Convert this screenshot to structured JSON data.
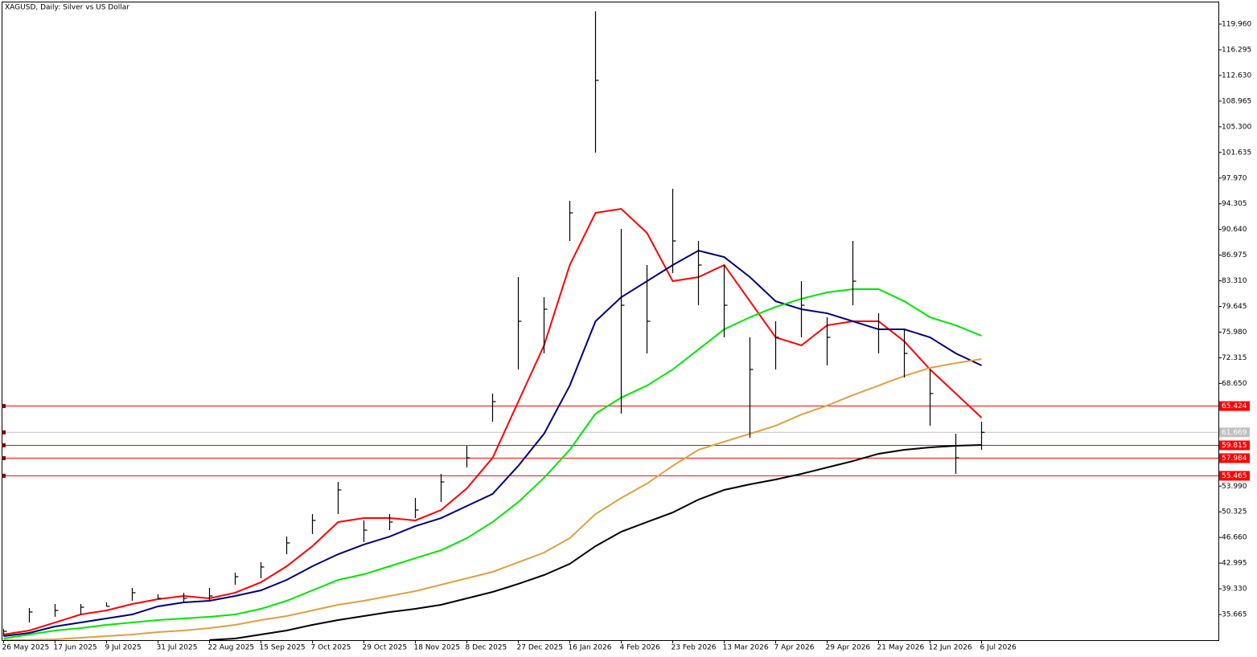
{
  "chart_data": {
    "type": "ohlc",
    "title": "XAGUSD, Daily:  Silver vs US Dollar",
    "categories": [
      "26 May 2025",
      null,
      "17 Jun 2025",
      null,
      "9 Jul 2025",
      null,
      "31 Jul 2025",
      null,
      "22 Aug 2025",
      null,
      "15 Sep 2025",
      null,
      "7 Oct 2025",
      null,
      "29 Oct 2025",
      null,
      "18 Nov 2025",
      null,
      "8 Dec 2025",
      null,
      "27 Dec 2025",
      null,
      "16 Jan 2026",
      null,
      "4 Feb 2026",
      null,
      "23 Feb 2026",
      null,
      "13 Mar 2026",
      null,
      "7 Apr 2026",
      null,
      "29 Apr 2026",
      null,
      "21 May 2026",
      null,
      "12 Jun 2026",
      null,
      "6 Jul 2026"
    ],
    "high": [
      33.61,
      36.59,
      37.16,
      37.16,
      37.39,
      39.46,
      38.54,
      38.77,
      39.46,
      41.63,
      43.13,
      46.79,
      50.01,
      54.59,
      49.09,
      50.01,
      52.3,
      55.74,
      59.75,
      67.21,
      83.84,
      80.97,
      94.73,
      121.79,
      90.72,
      85.56,
      96.45,
      89.0,
      85.56,
      75.24,
      77.53,
      83.26,
      78.1,
      89.0,
      78.68,
      76.38,
      70.65,
      61.47,
      63.19
    ],
    "low": [
      32.57,
      34.52,
      35.33,
      35.67,
      36.82,
      37.62,
      37.96,
      37.39,
      37.62,
      39.91,
      40.83,
      44.27,
      47.14,
      50.01,
      45.99,
      47.71,
      49.43,
      51.73,
      56.66,
      63.19,
      70.65,
      72.94,
      89.0,
      101.61,
      64.34,
      72.94,
      84.41,
      79.82,
      75.24,
      60.9,
      70.65,
      75.24,
      71.22,
      79.82,
      72.94,
      69.5,
      62.62,
      55.74,
      59.18
    ],
    "close": [
      33.26,
      36.02,
      36.24,
      36.7,
      36.82,
      38.77,
      37.96,
      37.96,
      38.31,
      41.06,
      42.44,
      45.88,
      49.09,
      53.45,
      47.71,
      48.86,
      50.58,
      54.59,
      58.03,
      66.06,
      77.53,
      79.25,
      93.01,
      111.93,
      79.82,
      77.53,
      89.0,
      85.56,
      79.82,
      70.65,
      75.24,
      79.82,
      75.24,
      83.26,
      76.38,
      72.94,
      67.21,
      58.03,
      61.669
    ],
    "bar_color": "#000000",
    "moving_averages": [
      {
        "color": "#ff0000",
        "values": [
          32.8,
          33.38,
          34.52,
          35.67,
          36.24,
          37.16,
          37.85,
          38.31,
          37.96,
          38.77,
          40.26,
          42.55,
          45.42,
          48.86,
          49.43,
          49.43,
          49.09,
          50.58,
          53.67,
          58.03,
          66.06,
          74.09,
          85.56,
          93.01,
          93.58,
          90.14,
          83.26,
          83.84,
          85.56,
          80.39,
          75.23,
          74.09,
          76.95,
          77.53,
          77.53,
          74.66,
          70.65,
          67.21,
          63.77
        ]
      },
      {
        "color": "#000080",
        "values": [
          32.57,
          33.03,
          33.95,
          34.52,
          35.1,
          35.67,
          36.82,
          37.39,
          37.62,
          38.31,
          39.11,
          40.6,
          42.55,
          44.27,
          45.65,
          46.79,
          48.28,
          49.43,
          51.15,
          52.87,
          56.89,
          61.47,
          68.35,
          77.53,
          80.97,
          83.26,
          85.56,
          87.62,
          86.7,
          83.84,
          80.39,
          79.25,
          78.67,
          77.53,
          76.38,
          76.38,
          75.23,
          72.94,
          71.22
        ]
      },
      {
        "color": "#00e600",
        "values": [
          32.23,
          32.8,
          33.38,
          33.72,
          34.18,
          34.52,
          34.87,
          35.1,
          35.33,
          35.67,
          36.47,
          37.62,
          39.11,
          40.6,
          41.4,
          42.55,
          43.7,
          44.84,
          46.56,
          48.86,
          51.72,
          55.17,
          59.18,
          64.34,
          66.63,
          68.35,
          70.65,
          73.51,
          76.38,
          78.1,
          79.59,
          80.74,
          81.66,
          82.12,
          82.12,
          80.39,
          78.1,
          76.95,
          75.46
        ]
      },
      {
        "color": "#e0a040",
        "values": [
          32.0,
          32.05,
          32.12,
          32.34,
          32.57,
          32.8,
          33.15,
          33.38,
          33.72,
          34.18,
          34.87,
          35.44,
          36.24,
          37.05,
          37.62,
          38.31,
          39.0,
          39.91,
          40.83,
          41.75,
          43.12,
          44.5,
          46.56,
          50.0,
          52.3,
          54.36,
          56.89,
          59.18,
          60.33,
          61.47,
          62.62,
          64.22,
          65.49,
          66.98,
          68.35,
          69.73,
          70.88,
          71.56,
          72.14
        ]
      },
      {
        "color": "#000000",
        "values": [
          null,
          null,
          null,
          null,
          null,
          null,
          null,
          null,
          32.02,
          32.23,
          32.8,
          33.38,
          34.18,
          34.87,
          35.44,
          36.01,
          36.47,
          37.05,
          37.96,
          38.88,
          40.03,
          41.29,
          42.89,
          45.42,
          47.48,
          48.86,
          50.23,
          52.07,
          53.45,
          54.25,
          54.94,
          55.74,
          56.66,
          57.57,
          58.61,
          59.18,
          59.52,
          59.75,
          59.87
        ]
      }
    ],
    "levels": [
      {
        "value": 65.424,
        "color": "#ff0000"
      },
      {
        "value": 59.815,
        "color": "#ff0000"
      },
      {
        "value": 57.984,
        "color": "#ff0000"
      },
      {
        "value": 55.465,
        "color": "#ff0000"
      }
    ],
    "current_price": {
      "value": 61.669,
      "color": "#c0c0c0"
    },
    "ylim": [
      32.0,
      123.06
    ],
    "yticks": [
      35.665,
      {
        "value": 39.33,
        "label": "39.330"
      },
      42.995,
      {
        "value": 46.66,
        "label": "46.660"
      },
      50.325,
      {
        "value": 53.99,
        "label": "53.990"
      },
      {
        "value": 68.65,
        "label": "68.650"
      },
      72.315,
      {
        "value": 75.98,
        "label": "75.980"
      },
      79.645,
      {
        "value": 83.31,
        "label": "83.310"
      },
      86.975,
      {
        "value": 90.64,
        "label": "90.640"
      },
      94.305,
      {
        "value": 97.97,
        "label": "97.970"
      },
      101.635,
      {
        "value": 105.3,
        "label": "105.300"
      },
      108.965,
      {
        "value": 112.63,
        "label": "112.630"
      },
      116.295,
      {
        "value": 119.96,
        "label": "119.960"
      }
    ]
  }
}
